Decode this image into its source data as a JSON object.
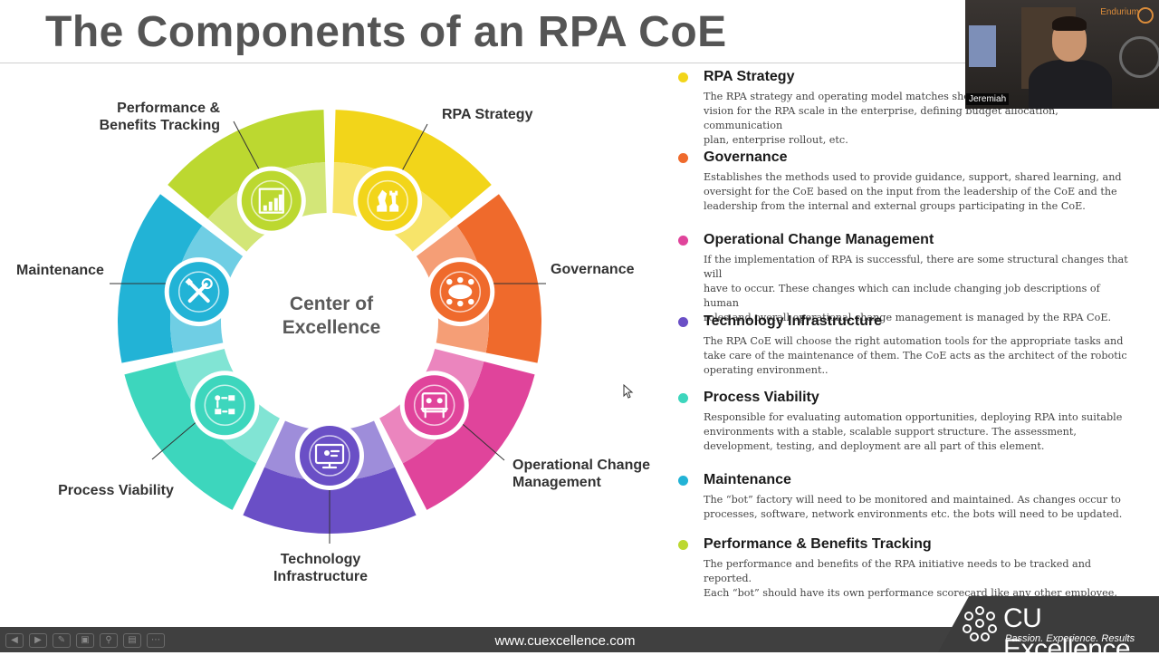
{
  "title": "The Components of an RPA CoE",
  "center": {
    "line1": "Center of",
    "line2": "Excellence"
  },
  "segments": [
    {
      "key": "rpa-strategy",
      "label_lines": [
        "RPA Strategy"
      ],
      "color": "#f2d51a",
      "icon": "chess-pieces-icon"
    },
    {
      "key": "governance",
      "label_lines": [
        "Governance"
      ],
      "color": "#ef6a2c",
      "icon": "meeting-table-icon"
    },
    {
      "key": "operational-change",
      "label_lines": [
        "Operational Change",
        "Management"
      ],
      "color": "#e0449b",
      "icon": "people-at-desk-icon"
    },
    {
      "key": "technology",
      "label_lines": [
        "Technology",
        "Infrastructure"
      ],
      "color": "#6a4fc6",
      "icon": "computer-monitor-icon"
    },
    {
      "key": "process-viability",
      "label_lines": [
        "Process Viability"
      ],
      "color": "#3dd6bd",
      "icon": "process-flow-icon"
    },
    {
      "key": "maintenance",
      "label_lines": [
        "Maintenance"
      ],
      "color": "#22b3d6",
      "icon": "wrench-screwdriver-icon"
    },
    {
      "key": "performance",
      "label_lines": [
        "Performance &",
        "Benefits Tracking"
      ],
      "color": "#bcd830",
      "icon": "bar-chart-icon"
    }
  ],
  "components": [
    {
      "title": "RPA Strategy",
      "color": "#f2d51a",
      "lines": [
        "The RPA strategy and operating model matches short-term and long-term",
        "vision for the RPA scale in the enterprise, defining budget allocation, communication",
        "plan, enterprise rollout, etc."
      ]
    },
    {
      "title": "Governance",
      "color": "#ef6a2c",
      "lines": [
        "Establishes the methods used to provide guidance, support, shared learning, and",
        "oversight for the CoE based on the input from the leadership of the CoE and the",
        "leadership from the internal and external groups participating in the CoE."
      ]
    },
    {
      "title": "Operational Change Management",
      "color": "#e0449b",
      "lines": [
        "If the implementation of RPA is successful, there are some structural changes that will",
        "have to occur. These changes which can include changing job descriptions of human",
        "roles and overall operational change management is managed by the RPA CoE."
      ]
    },
    {
      "title": "Technology Infrastructure",
      "color": "#6a4fc6",
      "lines": [
        "The RPA CoE will choose the right automation tools for the appropriate tasks and",
        "take care of the maintenance of them. The CoE acts as the architect of the robotic",
        "operating environment.."
      ]
    },
    {
      "title": "Process Viability",
      "color": "#3dd6bd",
      "lines": [
        "Responsible for evaluating automation opportunities, deploying RPA into suitable",
        "environments with a stable, scalable support structure. The assessment,",
        "development, testing, and deployment are all part of this element."
      ]
    },
    {
      "title": "Maintenance",
      "color": "#22b3d6",
      "lines": [
        "The “bot” factory will need to be monitored and maintained.  As changes occur to",
        "processes, software, network environments etc. the bots will need to be updated."
      ]
    },
    {
      "title": "Performance & Benefits Tracking",
      "color": "#bcd830",
      "lines": [
        "The performance and benefits of the RPA initiative needs to be tracked and reported.",
        "Each “bot” should have its own performance scorecard like any other employee."
      ]
    }
  ],
  "video": {
    "name": "Jeremiah",
    "logo_text": "Endurium"
  },
  "footer": {
    "url": "www.cuexcellence.com"
  },
  "brand": {
    "name": "CU Excellence",
    "tagline": "Passion. Experience. Results"
  },
  "toolbar_icons": [
    "prev-icon",
    "next-icon",
    "pen-icon",
    "pages-icon",
    "zoom-icon",
    "subtitles-icon",
    "more-icon"
  ]
}
